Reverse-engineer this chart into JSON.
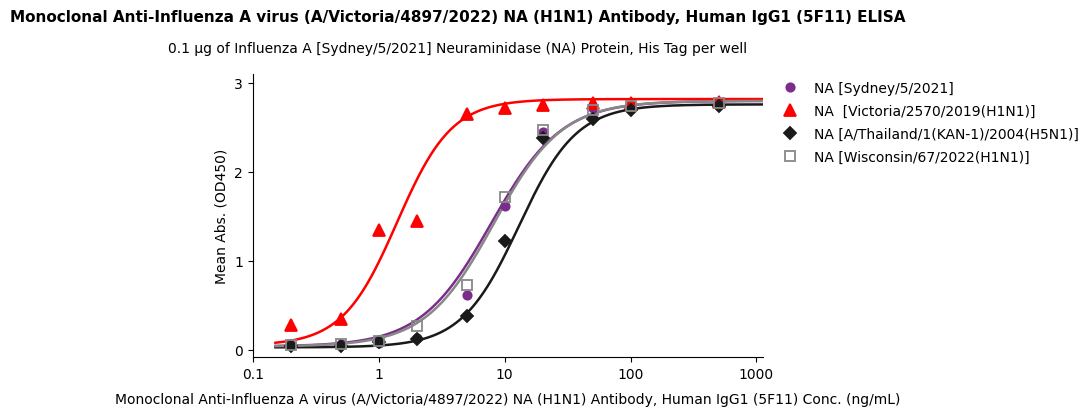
{
  "title": "Monoclonal Anti-Influenza A virus (A/Victoria/4897/2022) NA (H1N1) Antibody, Human IgG1 (5F11) ELISA",
  "subtitle": "0.1 μg of Influenza A [Sydney/5/2021] Neuraminidase (NA) Protein, His Tag per well",
  "xlabel": "Monoclonal Anti-Influenza A virus (A/Victoria/4897/2022) NA (H1N1) Antibody, Human IgG1 (5F11) Conc. (ng/mL)",
  "ylabel": "Mean Abs. (OD450)",
  "xlim_log": [
    -0.82,
    3.05
  ],
  "ylim": [
    -0.08,
    3.1
  ],
  "series": [
    {
      "label": "NA [Sydney/5/2021]",
      "color": "#7B2D8B",
      "marker": "o",
      "marker_fill": "#7B2D8B",
      "marker_size": 6,
      "ec": "#7B2D8B",
      "x_data": [
        0.2,
        0.5,
        1.0,
        2.0,
        5.0,
        10.0,
        20.0,
        50.0,
        100.0,
        500.0
      ],
      "y_data": [
        0.055,
        0.065,
        0.075,
        0.13,
        0.62,
        1.62,
        2.45,
        2.72,
        2.75,
        2.78
      ],
      "sigmoid": {
        "bottom": 0.04,
        "top": 2.8,
        "ec50": 7.8,
        "hill": 1.55
      }
    },
    {
      "label": "NA  [Victoria/2570/2019(H1N1)]",
      "color": "#FF0000",
      "marker": "^",
      "marker_fill": "#FF0000",
      "marker_size": 8,
      "ec": "#FF0000",
      "x_data": [
        0.2,
        0.5,
        1.0,
        2.0,
        5.0,
        10.0,
        20.0,
        50.0,
        100.0,
        500.0
      ],
      "y_data": [
        0.28,
        0.35,
        1.35,
        1.45,
        2.65,
        2.72,
        2.75,
        2.77,
        2.78,
        2.79
      ],
      "sigmoid": {
        "bottom": 0.05,
        "top": 2.82,
        "ec50": 1.4,
        "hill": 2.0
      }
    },
    {
      "label": "NA [A/Thailand/1(KAN-1)/2004(H5N1)]",
      "color": "#1A1A1A",
      "marker": "D",
      "marker_fill": "#1A1A1A",
      "marker_size": 6,
      "ec": "#1A1A1A",
      "x_data": [
        0.2,
        0.5,
        1.0,
        2.0,
        5.0,
        10.0,
        20.0,
        50.0,
        100.0,
        500.0
      ],
      "y_data": [
        0.04,
        0.05,
        0.09,
        0.12,
        0.38,
        1.22,
        2.38,
        2.6,
        2.7,
        2.74
      ],
      "sigmoid": {
        "bottom": 0.03,
        "top": 2.76,
        "ec50": 13.0,
        "hill": 1.9
      }
    },
    {
      "label": "NA [Wisconsin/67/2022(H1N1)]",
      "color": "#888888",
      "marker": "s",
      "marker_fill": "none",
      "marker_size": 7,
      "ec": "#888888",
      "x_data": [
        0.2,
        0.5,
        1.0,
        2.0,
        5.0,
        10.0,
        20.0,
        50.0,
        100.0,
        500.0
      ],
      "y_data": [
        0.055,
        0.065,
        0.1,
        0.27,
        0.73,
        1.72,
        2.47,
        2.7,
        2.74,
        2.78
      ],
      "sigmoid": {
        "bottom": 0.04,
        "top": 2.8,
        "ec50": 8.2,
        "hill": 1.6
      }
    }
  ],
  "xticks": [
    0.1,
    1,
    10,
    100,
    1000
  ],
  "yticks": [
    0,
    1,
    2,
    3
  ],
  "title_fontsize": 11,
  "subtitle_fontsize": 10,
  "axis_label_fontsize": 10,
  "tick_fontsize": 10,
  "legend_fontsize": 10
}
